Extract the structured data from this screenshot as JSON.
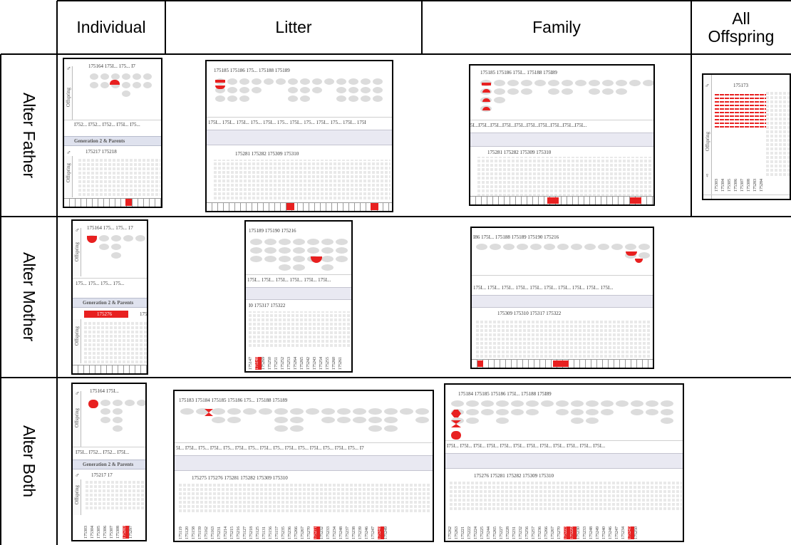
{
  "columns": [
    "Individual",
    "Litter",
    "Family",
    "All Offspring"
  ],
  "rows": [
    "Alter Father",
    "Alter Mother",
    "Alter Both"
  ],
  "colors": {
    "highlight": "#e82020",
    "grey": "#dcdcdc"
  },
  "shots": {
    "af_ind": {
      "top": "175164    175I...  175...  I7",
      "mid": "I752... I752... I752... I75I...  I75...",
      "gen": "Generation 2 & Parents",
      "bot": "175217          175218",
      "off": "Offspring"
    },
    "af_lit": {
      "top": "175185         175186          175...   175188         175189",
      "mid": "175I... 175I... 175I... 175... 175I... 175... 175I... 175... 175I... 175... 175I... 175I",
      "bot": "175281          175282          175309          175310"
    },
    "af_fam": {
      "top": "175185          175186     175I...  175188    175I89",
      "mid": "5I...I75I...I75I...I75I...I75I...I75I...I75I...I75I...I75I...I75I...",
      "bot": "175281       175282       175309        175310"
    },
    "af_all": {
      "top": "175173",
      "vids": [
        "175303",
        "175304",
        "175305",
        "175306",
        "175307",
        "175308",
        "175283",
        "175284"
      ],
      "off": "Offspring"
    },
    "am_ind": {
      "top": "175164  175...  175...  17",
      "mid": "175... 175... 175... 175...",
      "gen": "Generation 2 & Parents",
      "bar": "175276",
      "bot2": "175",
      "off": "Offspring"
    },
    "am_lit": {
      "top": "175189       175190       175216",
      "mid": "175I... 175I... 175I... 175I... 175I... 175I...",
      "bot": "I0          175317          175322",
      "vids": [
        "175147",
        "175148",
        "175269",
        "175250",
        "175251",
        "175252",
        "175253",
        "175264",
        "175265",
        "175242",
        "175243",
        "175254",
        "175255",
        "175260",
        "175261"
      ]
    },
    "am_fam": {
      "top": "I86      175I...   175188      175189      175190   175216",
      "mid": "175I... 175I... 175I... 175I... 175I... 175I... 175I... 175I... 175I... 175I...",
      "bot": "175309         175310         175317         175322"
    },
    "ab_ind": {
      "top": "175164       175I...",
      "mid": "I75I... I752... I752... I75I...",
      "gen": "Generation 2 & Parents",
      "bot": "175217          17",
      "vids": [
        "175303",
        "175304",
        "175305",
        "175306",
        "175307",
        "175308",
        "175283",
        "175297"
      ],
      "off": "Offspring"
    },
    "ab_lit": {
      "top": "175183        175184                175185          175186         175...   175188       175189",
      "mid": "5I... I75I... I75... I75I... I75... I75I... I75... I75I... I75... I75I... I75... I75I... I75... I75I... I75... I7",
      "bot": "175275         175276         175281         175282         175309         175310",
      "vids": [
        "175119",
        "175120",
        "175158",
        "175159",
        "175162",
        "175163",
        "175231",
        "175214",
        "175215",
        "175216",
        "175127",
        "175218",
        "175125",
        "175131",
        "175156",
        "175157",
        "175235",
        "175236",
        "175266",
        "175267",
        "175270",
        "175271",
        "175232",
        "175233",
        "175234",
        "175248",
        "175237",
        "175238",
        "175239",
        "175246",
        "175247",
        "175248",
        "175249"
      ]
    },
    "ab_fam": {
      "top": "175184          175185          175186      175I...   175188    175I89",
      "mid": "I75I... I75I... I75I... I75I... I75I... I75I... I75I... I75I... I75I... I75I... I75I... I75I...",
      "bot": "175276      175281       175282       175309       175310",
      "vids": [
        "175262",
        "175263",
        "175221",
        "175222",
        "175224",
        "175225",
        "175244",
        "175265",
        "175227",
        "175228",
        "175231",
        "175232",
        "175256",
        "175257",
        "175236",
        "175266",
        "175267",
        "175270",
        "175223",
        "175229",
        "175230",
        "175233",
        "175248",
        "175249",
        "175240",
        "175246",
        "175247",
        "175234",
        "175245",
        "175250"
      ]
    }
  }
}
